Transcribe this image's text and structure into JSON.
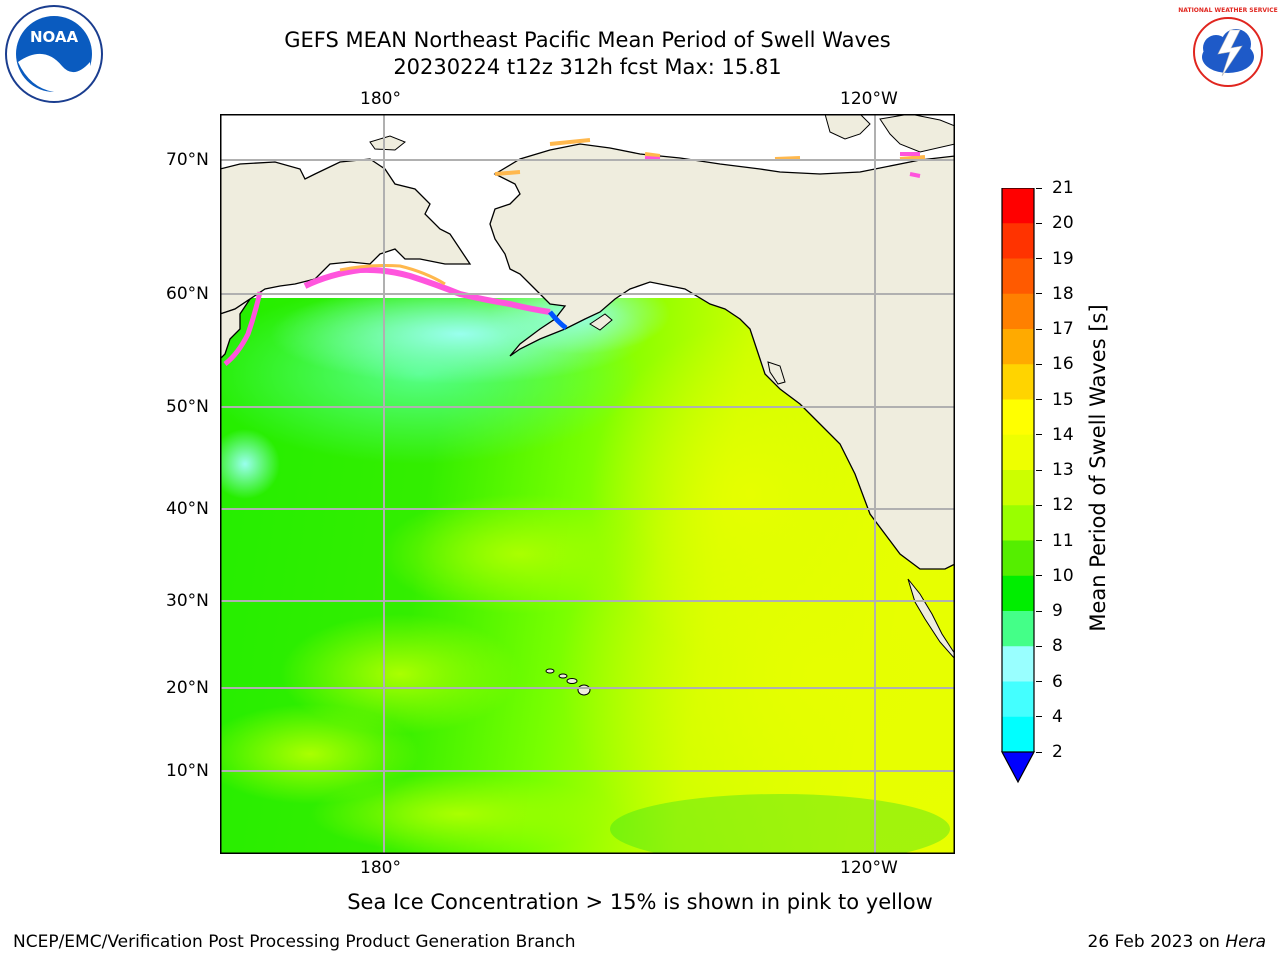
{
  "header": {
    "title_line1": "GEFS MEAN Northeast Pacific Mean Period of Swell Waves",
    "title_line2": "20230224 t12z 312h fcst   Max: 15.81"
  },
  "logos": {
    "left": "noaa-logo",
    "left_text": "NOAA",
    "right": "nws-logo",
    "right_text": "NATIONAL WEATHER SERVICE"
  },
  "map": {
    "lon_labels_top": [
      "180°",
      "120°W"
    ],
    "lon_labels_bottom": [
      "180°",
      "120°W"
    ],
    "lat_labels": [
      "70°N",
      "60°N",
      "50°N",
      "40°N",
      "30°N",
      "20°N",
      "10°N"
    ],
    "colors": {
      "land": "#efedde",
      "ice_white": "#ffffff",
      "ice_edge_pink": "#ff55dd",
      "ice_edge_orange": "#ffb84d",
      "grid": "#b0b0b0",
      "coast": "#000000"
    }
  },
  "colorbar": {
    "label": "Mean Period of Swell Waves [s]",
    "ticks": [
      "21",
      "20",
      "19",
      "18",
      "17",
      "16",
      "15",
      "14",
      "13",
      "12",
      "11",
      "10",
      "9",
      "8",
      "6",
      "4",
      "2"
    ],
    "colors": [
      "#ff0000",
      "#ff3300",
      "#ff5a00",
      "#ff8000",
      "#ffaa00",
      "#ffd400",
      "#ffff00",
      "#eeff00",
      "#ccff00",
      "#99ff00",
      "#55ee00",
      "#00ee00",
      "#44ff88",
      "#99ffff",
      "#44ffff",
      "#00ffff",
      "#00aaff",
      "#0044ff"
    ],
    "arrow_color": "#0000ff"
  },
  "note": "Sea Ice Concentration > 15% is shown in pink to yellow",
  "footer": {
    "left": "NCEP/EMC/Verification Post Processing Product Generation Branch",
    "date": "26 Feb 2023 on ",
    "machine": "Hera"
  }
}
